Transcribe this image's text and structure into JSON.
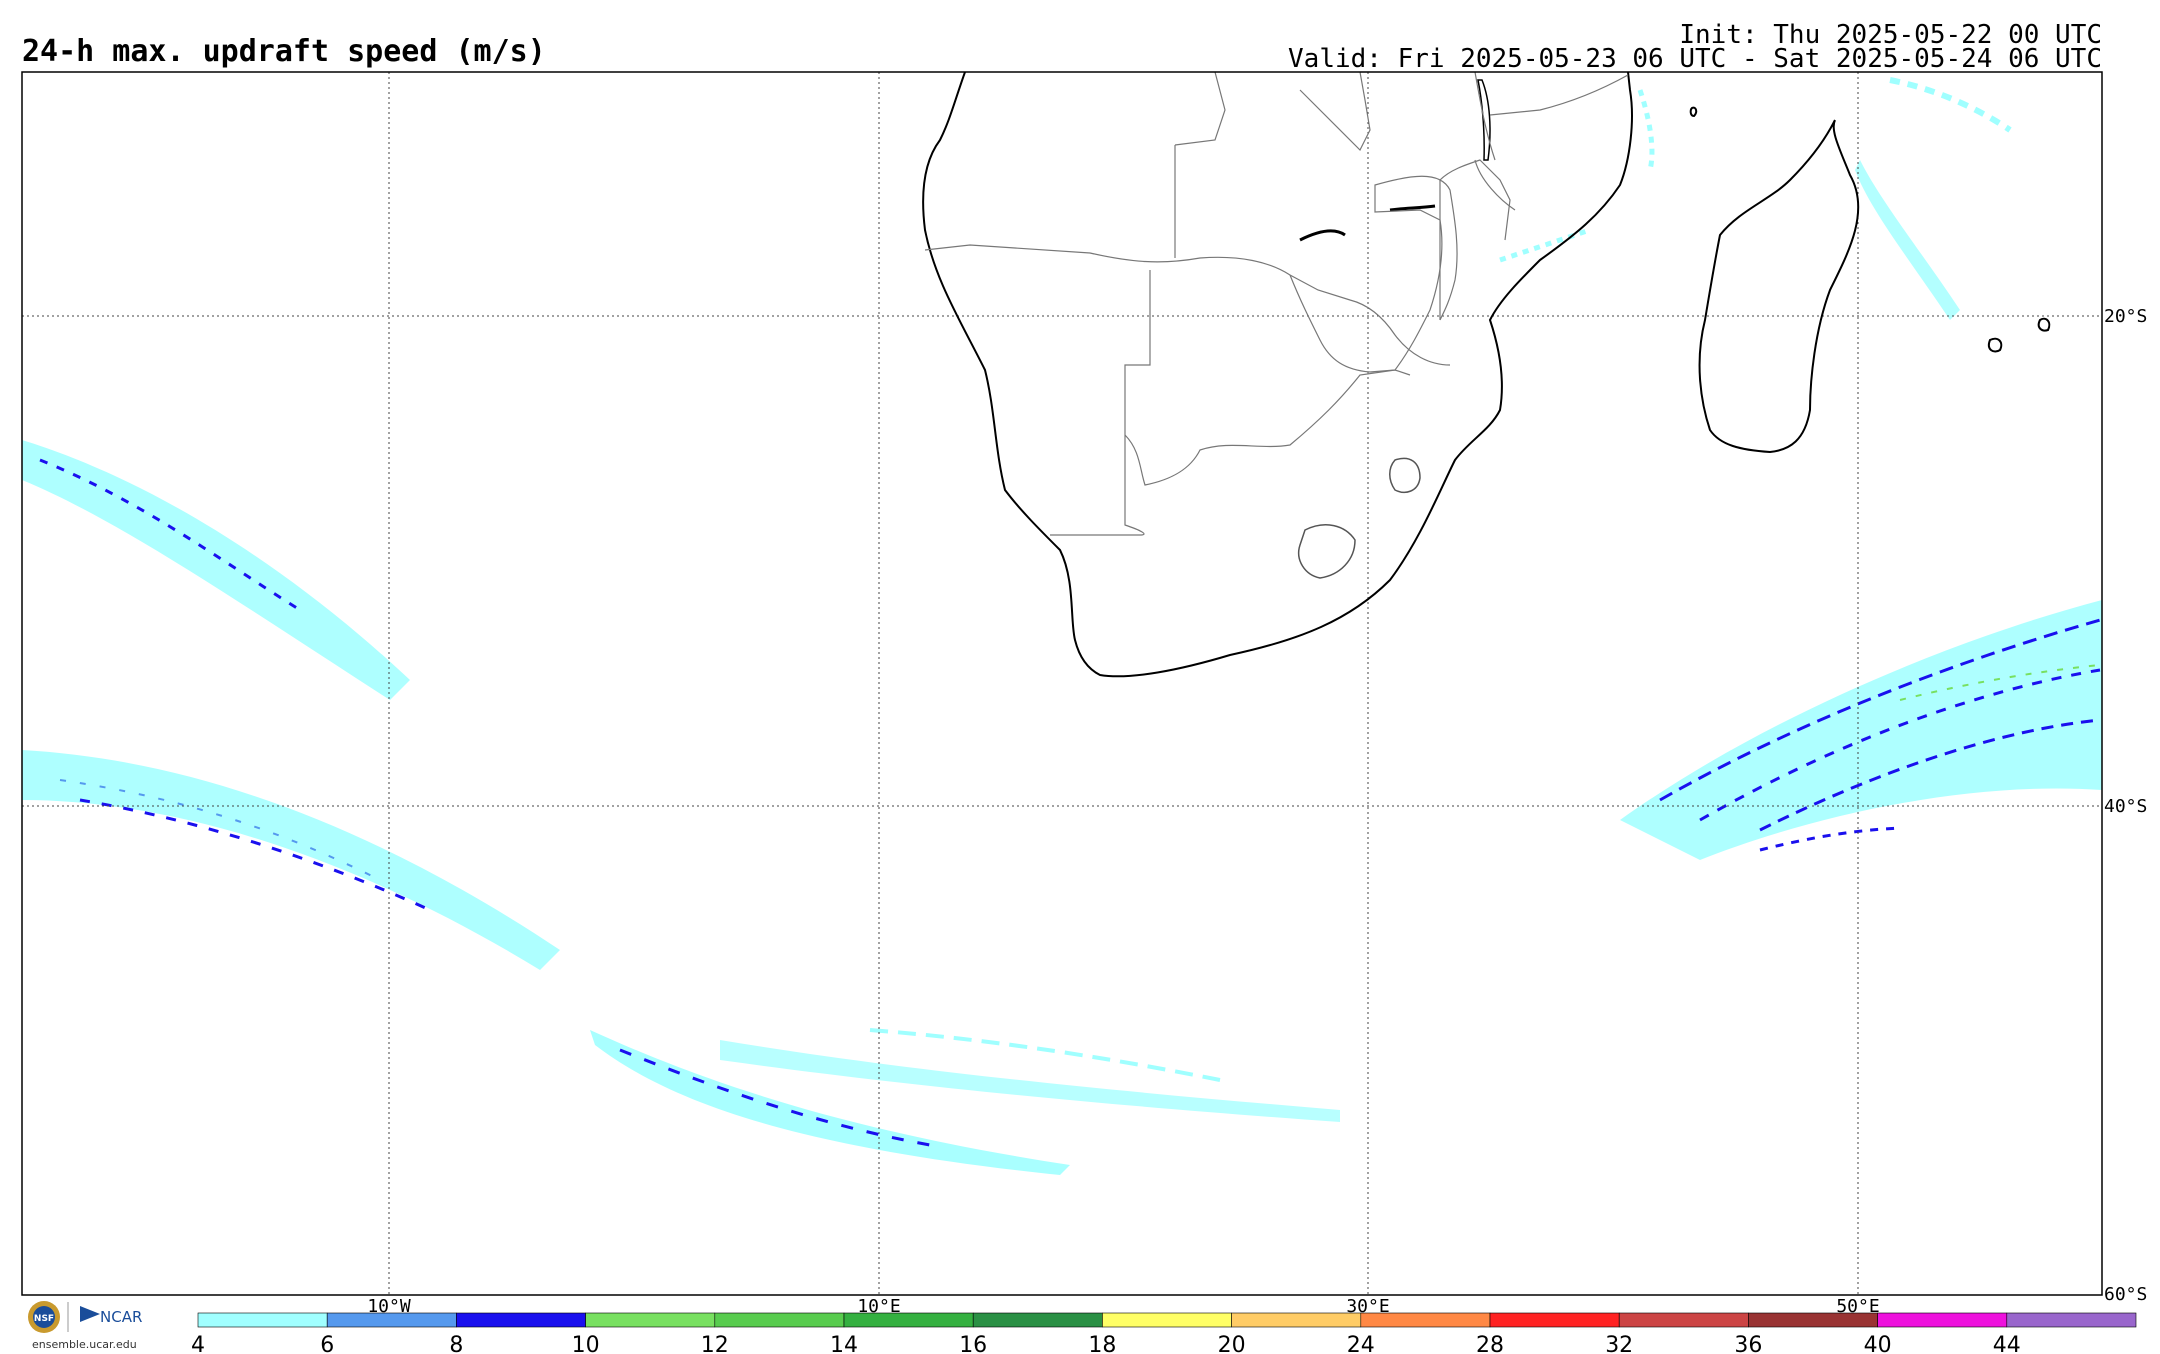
{
  "title": "24-h max. updraft speed (m/s)",
  "init": "Init: Thu 2025-05-22 00 UTC",
  "valid": "Valid: Fri 2025-05-23 06 UTC - Sat 2025-05-24 06 UTC",
  "map": {
    "lon_labels": [
      "10°W",
      "10°E",
      "30°E",
      "50°E"
    ],
    "lat_labels": [
      "20°S",
      "40°S",
      "60°S"
    ],
    "coastline_color": "#000000",
    "border_color": "#777777",
    "grid_style": "dotted"
  },
  "logo": {
    "nsf": "NSF",
    "ncar": "NCAR",
    "url": "ensemble.ucar.edu"
  },
  "colorbar": {
    "ticks": [
      "4",
      "6",
      "8",
      "10",
      "12",
      "14",
      "16",
      "18",
      "20",
      "24",
      "28",
      "32",
      "36",
      "40",
      "44"
    ],
    "colors": [
      "#a0ffff",
      "#5599ee",
      "#1a10ee",
      "#78e060",
      "#58cc4e",
      "#34b040",
      "#2a9044",
      "#ffff66",
      "#ffcc66",
      "#ff8844",
      "#ff2222",
      "#cc4444",
      "#993333",
      "#ee11dd",
      "#9966cc"
    ]
  }
}
